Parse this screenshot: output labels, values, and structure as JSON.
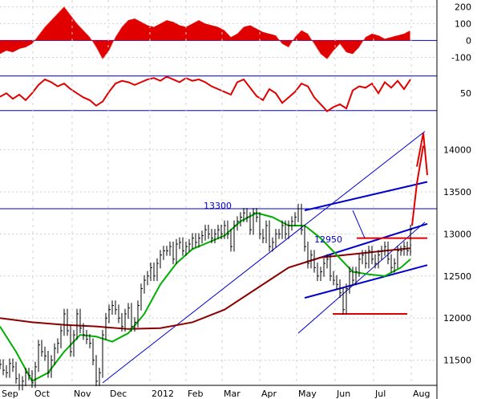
{
  "chart_data": [
    {
      "type": "bar",
      "panel": "oscillator",
      "yticks": [
        200,
        100,
        0,
        -100
      ],
      "ylim": [
        -150,
        230
      ],
      "color": "#e00000",
      "x": [
        0,
        8,
        16,
        24,
        32,
        40,
        48,
        56,
        64,
        72,
        80,
        88,
        96,
        104,
        112,
        120,
        128,
        136,
        144,
        152,
        160,
        168,
        176,
        184,
        192,
        200,
        208,
        216,
        224,
        232,
        240,
        248,
        256,
        264,
        272,
        280,
        288,
        296,
        304,
        312,
        320,
        328,
        336,
        344,
        352,
        360,
        368,
        376,
        384,
        392,
        400,
        408,
        416,
        424,
        432,
        440,
        448,
        456,
        464,
        472,
        480,
        488,
        496,
        504,
        512
      ],
      "values": [
        -80,
        -60,
        -70,
        -50,
        -40,
        -20,
        30,
        80,
        120,
        160,
        200,
        150,
        100,
        60,
        20,
        -40,
        -110,
        -60,
        20,
        80,
        120,
        130,
        110,
        90,
        80,
        100,
        120,
        110,
        90,
        80,
        100,
        120,
        100,
        90,
        80,
        60,
        20,
        40,
        80,
        90,
        70,
        50,
        40,
        30,
        -20,
        -40,
        20,
        60,
        40,
        -20,
        -80,
        -110,
        -60,
        -20,
        -70,
        -80,
        -40,
        20,
        40,
        30,
        10,
        20,
        30,
        40,
        60
      ]
    },
    {
      "type": "line",
      "panel": "momentum",
      "yticks": [
        50
      ],
      "upper_line": 75,
      "lower_line": 25,
      "ylim": [
        20,
        85
      ],
      "color": "#e00000",
      "x": [
        0,
        8,
        16,
        24,
        32,
        40,
        48,
        56,
        64,
        72,
        80,
        88,
        96,
        104,
        112,
        120,
        128,
        136,
        144,
        152,
        160,
        168,
        176,
        184,
        192,
        200,
        208,
        216,
        224,
        232,
        240,
        248,
        256,
        264,
        272,
        280,
        288,
        296,
        304,
        312,
        320,
        328,
        336,
        344,
        352,
        360,
        368,
        376,
        384,
        392,
        400,
        408,
        416,
        424,
        432,
        440,
        448,
        456,
        464,
        472,
        480,
        488,
        496,
        504,
        512
      ],
      "values": [
        45,
        50,
        42,
        48,
        40,
        50,
        62,
        70,
        66,
        60,
        64,
        56,
        50,
        44,
        40,
        32,
        38,
        52,
        64,
        68,
        66,
        62,
        66,
        70,
        72,
        68,
        74,
        70,
        66,
        72,
        68,
        70,
        66,
        60,
        56,
        52,
        48,
        66,
        70,
        58,
        46,
        40,
        56,
        50,
        36,
        44,
        52,
        64,
        60,
        44,
        34,
        24,
        30,
        34,
        28,
        54,
        60,
        58,
        64,
        50,
        66,
        58,
        68,
        56,
        70
      ]
    },
    {
      "type": "line",
      "panel": "price",
      "yticks": [
        14000,
        13500,
        13000,
        12500,
        12000,
        11500
      ],
      "ylim": [
        11200,
        14350
      ],
      "xlabels": [
        "Sep",
        "Oct",
        "Nov",
        "Dec",
        "2012",
        "Feb",
        "Mar",
        "Apr",
        "May",
        "Jun",
        "Jul",
        "Aug"
      ],
      "label_13300": "13300",
      "label_12950": "12950",
      "series": [
        {
          "role": "price_bars",
          "color": "#000000",
          "x": [
            0,
            4,
            8,
            12,
            16,
            20,
            24,
            28,
            32,
            36,
            40,
            44,
            48,
            52,
            56,
            60,
            64,
            68,
            72,
            76,
            80,
            84,
            88,
            92,
            96,
            100,
            104,
            108,
            112,
            116,
            120,
            124,
            128,
            132,
            136,
            140,
            144,
            148,
            152,
            156,
            160,
            164,
            168,
            172,
            176,
            180,
            184,
            188,
            192,
            196,
            200,
            204,
            208,
            212,
            216,
            220,
            224,
            228,
            232,
            236,
            240,
            244,
            248,
            252,
            256,
            260,
            264,
            268,
            272,
            276,
            280,
            284,
            288,
            292,
            296,
            300,
            304,
            308,
            312,
            316,
            320,
            324,
            328,
            332,
            336,
            340,
            344,
            348,
            352,
            356,
            360,
            364,
            368,
            372,
            376,
            380,
            384,
            388,
            392,
            396,
            400,
            404,
            408,
            412,
            416,
            420,
            424,
            428,
            432,
            436,
            440,
            444,
            448,
            452,
            456,
            460,
            464,
            468,
            472,
            476,
            480,
            484,
            488,
            492,
            496,
            500,
            504,
            508,
            512
          ],
          "values": [
            11450,
            11380,
            11350,
            11460,
            11420,
            11280,
            11200,
            11250,
            11350,
            11320,
            11230,
            11420,
            11680,
            11600,
            11550,
            11350,
            11500,
            11640,
            11700,
            11850,
            12050,
            11850,
            11600,
            11800,
            12050,
            11880,
            11800,
            11750,
            11700,
            11500,
            11250,
            11350,
            11800,
            12000,
            12100,
            12150,
            12100,
            12000,
            11900,
            12050,
            12120,
            11900,
            11950,
            12150,
            12350,
            12450,
            12500,
            12600,
            12500,
            12650,
            12750,
            12800,
            12800,
            12850,
            12700,
            12880,
            12900,
            12800,
            12850,
            12880,
            12950,
            12900,
            12950,
            12980,
            13050,
            13000,
            12950,
            13000,
            13050,
            13000,
            13100,
            13000,
            12850,
            13100,
            13150,
            13200,
            13250,
            13200,
            13050,
            13250,
            13200,
            13000,
            12950,
            13100,
            12850,
            12900,
            13000,
            13000,
            13100,
            13000,
            13100,
            13150,
            13200,
            13300,
            13050,
            12850,
            12650,
            12750,
            12600,
            12500,
            12550,
            12650,
            12700,
            12500,
            12450,
            12400,
            12300,
            12100,
            12350,
            12550,
            12450,
            12550,
            12700,
            12750,
            12650,
            12800,
            12700,
            12650,
            12750,
            12800,
            12850,
            12700,
            12600,
            12650,
            12800,
            12800,
            12850,
            12800,
            13050
          ]
        },
        {
          "role": "ma_short",
          "color": "#00b000",
          "x": [
            0,
            20,
            40,
            60,
            80,
            100,
            120,
            140,
            160,
            180,
            200,
            220,
            240,
            260,
            280,
            300,
            320,
            340,
            360,
            380,
            400,
            420,
            440,
            460,
            480,
            500,
            512
          ],
          "values": [
            11900,
            11600,
            11250,
            11350,
            11600,
            11800,
            11780,
            11720,
            11820,
            12050,
            12400,
            12650,
            12820,
            12900,
            12980,
            13150,
            13250,
            13200,
            13100,
            13100,
            12950,
            12750,
            12550,
            12520,
            12500,
            12600,
            12700
          ]
        },
        {
          "role": "ma_long",
          "color": "#8b0000",
          "x": [
            0,
            40,
            80,
            120,
            160,
            200,
            240,
            280,
            320,
            360,
            400,
            440,
            480,
            512
          ],
          "values": [
            12000,
            11950,
            11920,
            11900,
            11870,
            11880,
            11950,
            12100,
            12350,
            12600,
            12720,
            12760,
            12800,
            12830
          ]
        }
      ],
      "trendlines": [
        {
          "role": "long_uptrend",
          "color": "#0000cc",
          "points": [
            [
              128,
              11230
            ],
            [
              530,
              14220
            ]
          ]
        },
        {
          "role": "support_uptrend",
          "color": "#0000cc",
          "points": [
            [
              372,
              11820
            ],
            [
              530,
              13140
            ]
          ]
        },
        {
          "role": "channel_upper",
          "color": "#0000cc",
          "points": [
            [
              380,
              13280
            ],
            [
              533,
              13620
            ]
          ]
        },
        {
          "role": "channel_mid",
          "color": "#0000cc",
          "points": [
            [
              380,
              12660
            ],
            [
              533,
              13120
            ]
          ]
        },
        {
          "role": "channel_lower",
          "color": "#0000cc",
          "points": [
            [
              380,
              12240
            ],
            [
              533,
              12630
            ]
          ]
        },
        {
          "role": "horizontal_13300",
          "color": "#0000cc",
          "points": [
            [
              0,
              13300
            ],
            [
              545,
              13300
            ]
          ]
        },
        {
          "role": "resistance_12950",
          "color": "#e00000",
          "points": [
            [
              445,
              12950
            ],
            [
              533,
              12950
            ]
          ]
        },
        {
          "role": "support_12050",
          "color": "#e00000",
          "points": [
            [
              415,
              12050
            ],
            [
              508,
              12050
            ]
          ]
        }
      ]
    }
  ]
}
